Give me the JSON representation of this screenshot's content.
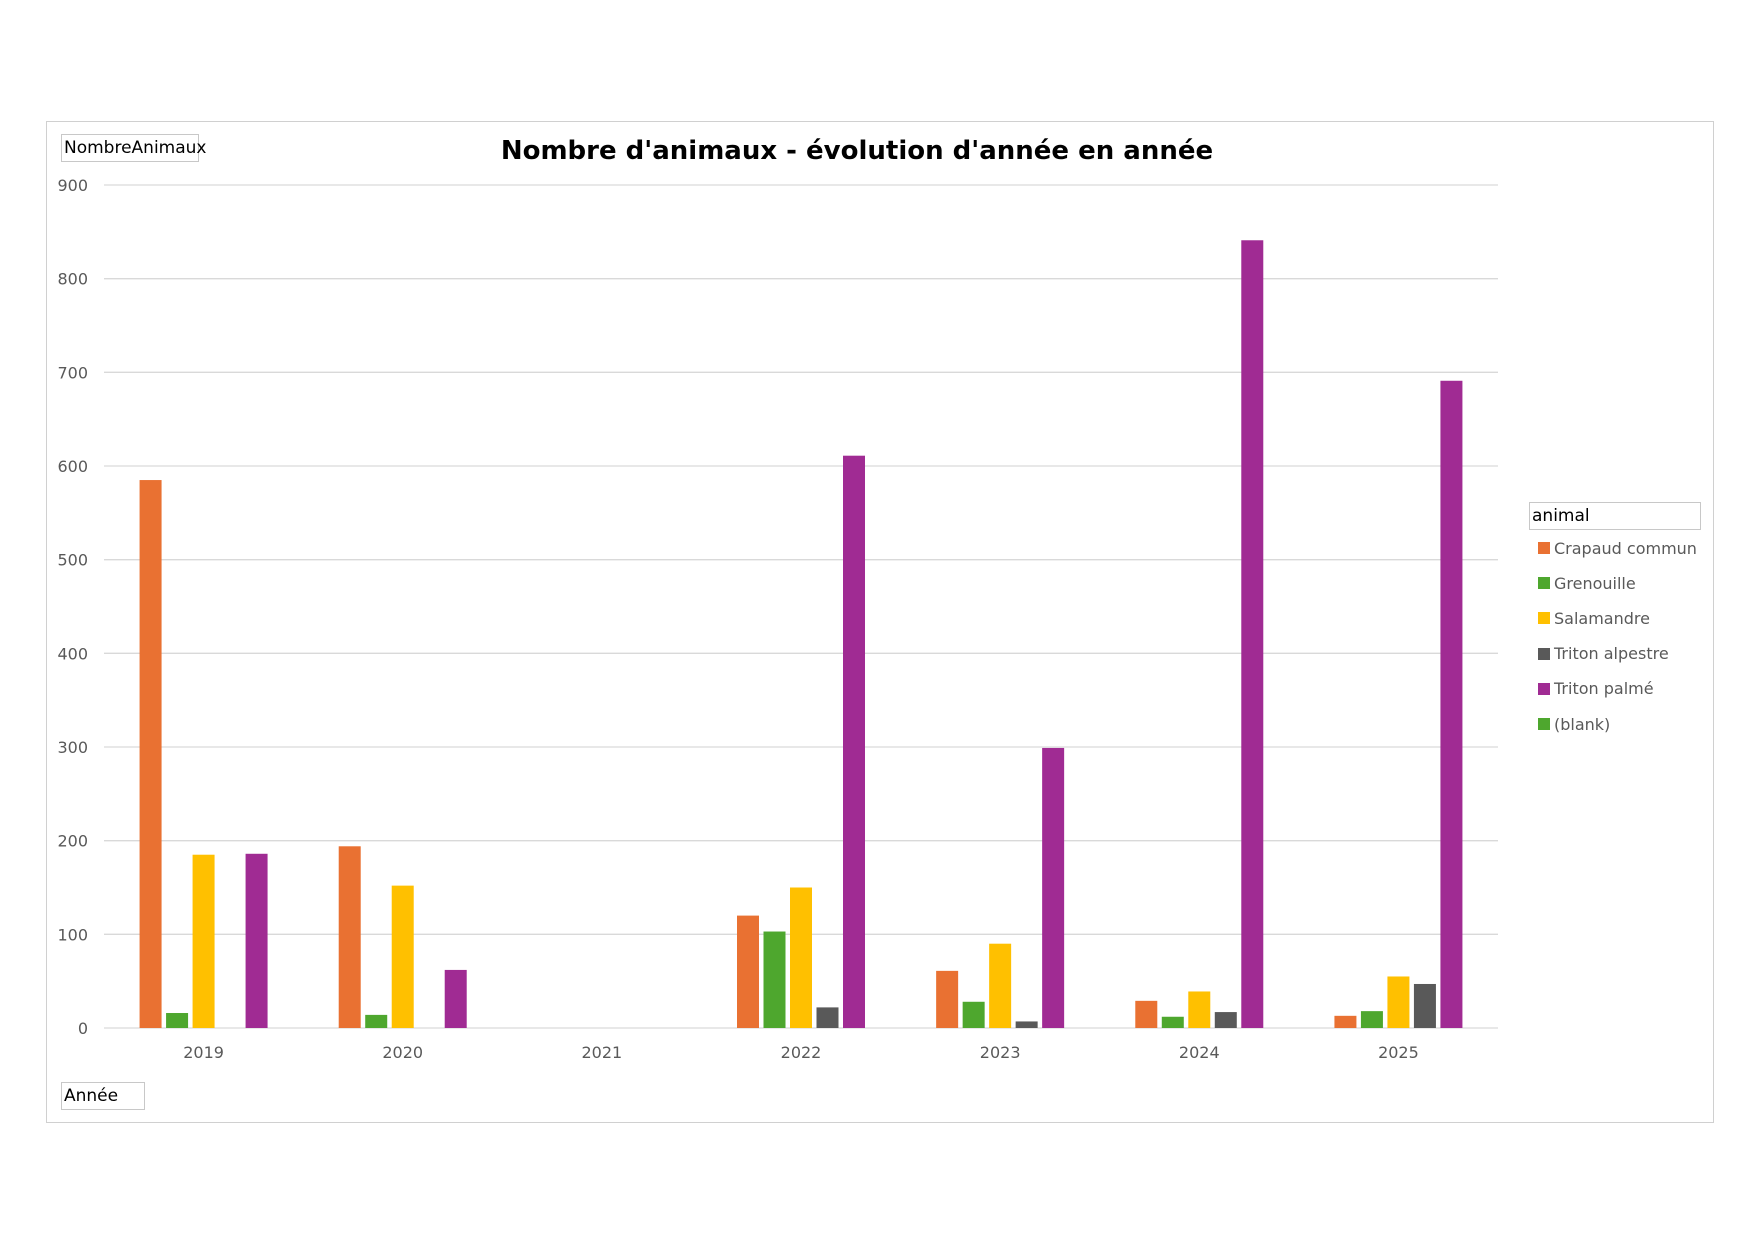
{
  "chart_data": {
    "type": "bar",
    "title": "Nombre d'animaux - évolution d'année en année",
    "value_field_label": "NombreAnimaux",
    "axis_field_label": "Année",
    "legend_field_label": "animal",
    "categories": [
      "2019",
      "2020",
      "2021",
      "2022",
      "2023",
      "2024",
      "2025"
    ],
    "ylim": [
      0,
      900
    ],
    "yticks": [
      0,
      100,
      200,
      300,
      400,
      500,
      600,
      700,
      800,
      900
    ],
    "grid": true,
    "legend_position": "right",
    "series": [
      {
        "name": "Crapaud commun",
        "color": "#E97132",
        "values": [
          585,
          194,
          null,
          120,
          61,
          29,
          13
        ]
      },
      {
        "name": "Grenouille",
        "color": "#4EA72E",
        "values": [
          16,
          14,
          null,
          103,
          28,
          12,
          18
        ]
      },
      {
        "name": "Salamandre",
        "color": "#FFC000",
        "values": [
          185,
          152,
          null,
          150,
          90,
          39,
          55
        ]
      },
      {
        "name": "Triton alpestre",
        "color": "#595959",
        "values": [
          null,
          null,
          null,
          22,
          7,
          17,
          47
        ]
      },
      {
        "name": "Triton palmé",
        "color": "#A02B93",
        "values": [
          186,
          62,
          null,
          611,
          299,
          841,
          691
        ]
      },
      {
        "name": "(blank)",
        "color": "#4EA72E",
        "values": [
          null,
          null,
          null,
          null,
          null,
          null,
          null
        ]
      }
    ]
  }
}
